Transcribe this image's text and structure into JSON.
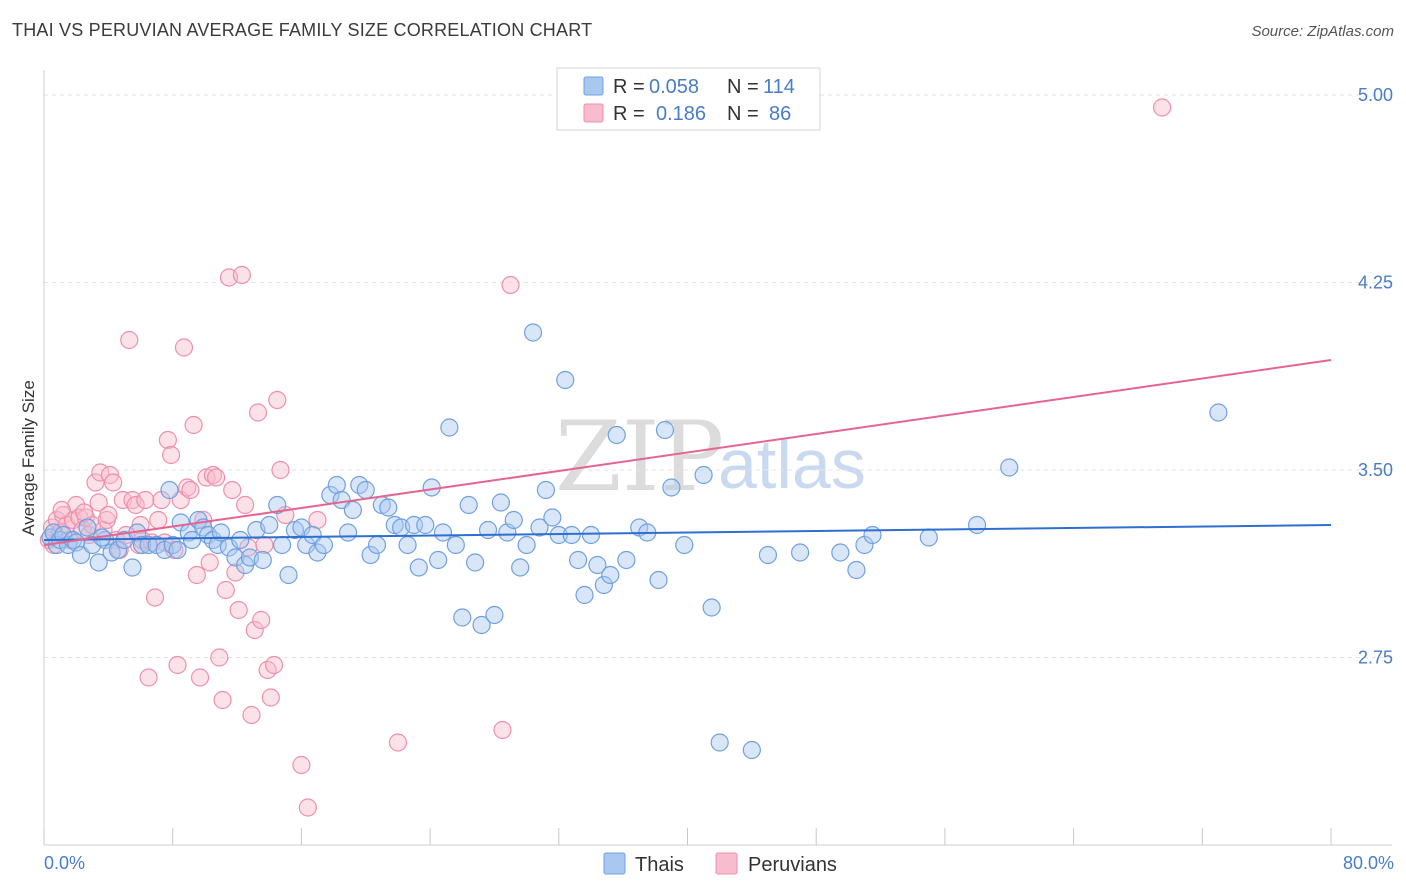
{
  "title": "THAI VS PERUVIAN AVERAGE FAMILY SIZE CORRELATION CHART",
  "source": "Source: ZipAtlas.com",
  "watermark": {
    "zip": "ZIP",
    "atlas": "atlas"
  },
  "legend": {
    "rows": [
      {
        "r_label": "R =",
        "r_value": "0.058",
        "n_label": "N =",
        "n_value": "114"
      },
      {
        "r_label": "R =",
        "r_value": "0.186",
        "n_label": "N =",
        "n_value": "86"
      }
    ]
  },
  "bottom_legend": [
    "Thais",
    "Peruvians"
  ],
  "colors": {
    "thais_fill": "#a9c8f0",
    "thais_stroke": "#6fa0e0",
    "thais_line": "#2f6fd0",
    "peruvians_fill": "#f7bccd",
    "peruvians_stroke": "#ef8fab",
    "peruvians_line": "#e6658f",
    "grid": "#e3e3e3",
    "axis_text": "#4a7cc7"
  },
  "chart_data": {
    "type": "scatter",
    "title": "THAI VS PERUVIAN AVERAGE FAMILY SIZE CORRELATION CHART",
    "xlabel": "",
    "ylabel": "Average Family Size",
    "xlim": [
      0,
      80
    ],
    "ylim": [
      2.0,
      5.1
    ],
    "x_tick_labels": [
      "0.0%",
      "80.0%"
    ],
    "y_ticks": [
      2.75,
      3.5,
      4.25,
      5.0
    ],
    "y_tick_labels": [
      "2.75",
      "3.50",
      "4.25",
      "5.00"
    ],
    "series": [
      {
        "name": "Thais",
        "r": 0.058,
        "n": 114,
        "trend": {
          "x": [
            0,
            80
          ],
          "y": [
            3.22,
            3.28
          ]
        },
        "points": [
          [
            0.4,
            3.23
          ],
          [
            0.6,
            3.25
          ],
          [
            0.8,
            3.2
          ],
          [
            1.0,
            3.22
          ],
          [
            1.2,
            3.24
          ],
          [
            1.5,
            3.2
          ],
          [
            1.8,
            3.22
          ],
          [
            2.0,
            3.21
          ],
          [
            2.3,
            3.16
          ],
          [
            2.7,
            3.27
          ],
          [
            3.0,
            3.2
          ],
          [
            3.4,
            3.13
          ],
          [
            3.8,
            3.22
          ],
          [
            4.2,
            3.17
          ],
          [
            4.6,
            3.18
          ],
          [
            5.0,
            3.22
          ],
          [
            5.5,
            3.11
          ],
          [
            5.8,
            3.25
          ],
          [
            6.1,
            3.2
          ],
          [
            6.5,
            3.2
          ],
          [
            7.0,
            3.2
          ],
          [
            7.5,
            3.18
          ],
          [
            7.8,
            3.42
          ],
          [
            8.0,
            3.2
          ],
          [
            8.3,
            3.18
          ],
          [
            8.5,
            3.29
          ],
          [
            9.0,
            3.25
          ],
          [
            9.2,
            3.22
          ],
          [
            9.6,
            3.3
          ],
          [
            9.9,
            3.27
          ],
          [
            10.2,
            3.24
          ],
          [
            10.5,
            3.22
          ],
          [
            10.8,
            3.2
          ],
          [
            11.0,
            3.25
          ],
          [
            11.5,
            3.19
          ],
          [
            11.9,
            3.15
          ],
          [
            12.2,
            3.22
          ],
          [
            12.5,
            3.12
          ],
          [
            12.8,
            3.15
          ],
          [
            13.2,
            3.26
          ],
          [
            13.6,
            3.14
          ],
          [
            14.0,
            3.28
          ],
          [
            14.5,
            3.36
          ],
          [
            14.8,
            3.2
          ],
          [
            15.2,
            3.08
          ],
          [
            15.6,
            3.26
          ],
          [
            16.0,
            3.27
          ],
          [
            16.3,
            3.2
          ],
          [
            16.7,
            3.24
          ],
          [
            17.0,
            3.17
          ],
          [
            17.4,
            3.2
          ],
          [
            17.8,
            3.4
          ],
          [
            18.2,
            3.44
          ],
          [
            18.5,
            3.38
          ],
          [
            18.9,
            3.25
          ],
          [
            19.2,
            3.34
          ],
          [
            19.6,
            3.44
          ],
          [
            20.0,
            3.42
          ],
          [
            20.3,
            3.16
          ],
          [
            20.7,
            3.2
          ],
          [
            21.0,
            3.36
          ],
          [
            21.4,
            3.35
          ],
          [
            21.8,
            3.28
          ],
          [
            22.2,
            3.27
          ],
          [
            22.6,
            3.2
          ],
          [
            23.0,
            3.28
          ],
          [
            23.3,
            3.11
          ],
          [
            23.7,
            3.28
          ],
          [
            24.1,
            3.43
          ],
          [
            24.5,
            3.14
          ],
          [
            24.8,
            3.25
          ],
          [
            25.2,
            3.67
          ],
          [
            25.6,
            3.2
          ],
          [
            26.0,
            2.91
          ],
          [
            26.4,
            3.36
          ],
          [
            26.8,
            3.13
          ],
          [
            27.2,
            2.88
          ],
          [
            27.6,
            3.26
          ],
          [
            28.0,
            2.92
          ],
          [
            28.4,
            3.37
          ],
          [
            28.8,
            3.25
          ],
          [
            29.2,
            3.3
          ],
          [
            29.6,
            3.11
          ],
          [
            30.0,
            3.2
          ],
          [
            30.4,
            4.05
          ],
          [
            30.8,
            3.27
          ],
          [
            31.2,
            3.42
          ],
          [
            31.6,
            3.31
          ],
          [
            32.0,
            3.24
          ],
          [
            32.4,
            3.86
          ],
          [
            32.8,
            3.24
          ],
          [
            33.2,
            3.14
          ],
          [
            33.6,
            3.0
          ],
          [
            34.0,
            3.24
          ],
          [
            34.4,
            3.12
          ],
          [
            34.8,
            3.04
          ],
          [
            35.2,
            3.08
          ],
          [
            35.6,
            3.64
          ],
          [
            36.2,
            3.14
          ],
          [
            37.0,
            3.27
          ],
          [
            37.5,
            3.25
          ],
          [
            38.2,
            3.06
          ],
          [
            38.6,
            3.66
          ],
          [
            39.0,
            3.43
          ],
          [
            39.8,
            3.2
          ],
          [
            41.0,
            3.48
          ],
          [
            41.5,
            2.95
          ],
          [
            42.0,
            2.41
          ],
          [
            44.0,
            2.38
          ],
          [
            45.0,
            3.16
          ],
          [
            47.0,
            3.17
          ],
          [
            49.5,
            3.17
          ],
          [
            50.5,
            3.1
          ],
          [
            51.0,
            3.2
          ],
          [
            51.5,
            3.24
          ],
          [
            55.0,
            3.23
          ],
          [
            58.0,
            3.28
          ],
          [
            60.0,
            3.51
          ],
          [
            73.0,
            3.73
          ],
          [
            3.6,
            3.23
          ]
        ]
      },
      {
        "name": "Peruvians",
        "r": 0.186,
        "n": 86,
        "trend": {
          "x": [
            0,
            80
          ],
          "y": [
            3.2,
            3.94
          ]
        },
        "points": [
          [
            0.3,
            3.22
          ],
          [
            0.5,
            3.27
          ],
          [
            0.8,
            3.3
          ],
          [
            1.0,
            3.25
          ],
          [
            1.2,
            3.32
          ],
          [
            1.4,
            3.28
          ],
          [
            1.6,
            3.22
          ],
          [
            1.8,
            3.3
          ],
          [
            2.0,
            3.36
          ],
          [
            2.2,
            3.31
          ],
          [
            2.4,
            3.26
          ],
          [
            2.6,
            3.31
          ],
          [
            2.8,
            3.24
          ],
          [
            3.0,
            3.28
          ],
          [
            3.2,
            3.45
          ],
          [
            3.4,
            3.37
          ],
          [
            3.5,
            3.49
          ],
          [
            3.7,
            3.26
          ],
          [
            3.9,
            3.3
          ],
          [
            4.1,
            3.48
          ],
          [
            4.3,
            3.45
          ],
          [
            4.5,
            3.22
          ],
          [
            4.7,
            3.18
          ],
          [
            4.9,
            3.38
          ],
          [
            5.1,
            3.24
          ],
          [
            5.3,
            4.02
          ],
          [
            5.5,
            3.38
          ],
          [
            5.7,
            3.36
          ],
          [
            5.9,
            3.2
          ],
          [
            6.1,
            3.22
          ],
          [
            6.3,
            3.38
          ],
          [
            6.5,
            2.67
          ],
          [
            6.7,
            3.21
          ],
          [
            6.9,
            2.99
          ],
          [
            7.1,
            3.3
          ],
          [
            7.3,
            3.38
          ],
          [
            7.5,
            3.21
          ],
          [
            7.7,
            3.62
          ],
          [
            7.9,
            3.56
          ],
          [
            8.1,
            3.18
          ],
          [
            8.3,
            2.72
          ],
          [
            8.5,
            3.38
          ],
          [
            8.7,
            3.99
          ],
          [
            8.9,
            3.43
          ],
          [
            9.1,
            3.42
          ],
          [
            9.3,
            3.68
          ],
          [
            9.5,
            3.08
          ],
          [
            9.7,
            2.67
          ],
          [
            9.9,
            3.3
          ],
          [
            10.1,
            3.47
          ],
          [
            10.3,
            3.13
          ],
          [
            10.5,
            3.48
          ],
          [
            10.7,
            3.47
          ],
          [
            10.9,
            2.75
          ],
          [
            11.1,
            2.58
          ],
          [
            11.3,
            3.02
          ],
          [
            11.5,
            4.27
          ],
          [
            11.7,
            3.42
          ],
          [
            11.9,
            3.09
          ],
          [
            12.1,
            2.94
          ],
          [
            12.3,
            4.28
          ],
          [
            12.5,
            3.36
          ],
          [
            12.7,
            3.19
          ],
          [
            12.9,
            2.52
          ],
          [
            13.1,
            2.86
          ],
          [
            13.3,
            3.73
          ],
          [
            13.5,
            2.9
          ],
          [
            13.7,
            3.2
          ],
          [
            13.9,
            2.7
          ],
          [
            14.1,
            2.59
          ],
          [
            14.3,
            2.72
          ],
          [
            14.5,
            3.78
          ],
          [
            14.7,
            3.5
          ],
          [
            15.0,
            3.32
          ],
          [
            16.0,
            2.32
          ],
          [
            16.4,
            2.15
          ],
          [
            17.0,
            3.3
          ],
          [
            22.0,
            2.41
          ],
          [
            28.5,
            2.46
          ],
          [
            29.0,
            4.24
          ],
          [
            69.5,
            4.95
          ],
          [
            0.6,
            3.2
          ],
          [
            1.1,
            3.34
          ],
          [
            2.5,
            3.33
          ],
          [
            4.0,
            3.32
          ],
          [
            6.0,
            3.28
          ]
        ]
      }
    ]
  }
}
